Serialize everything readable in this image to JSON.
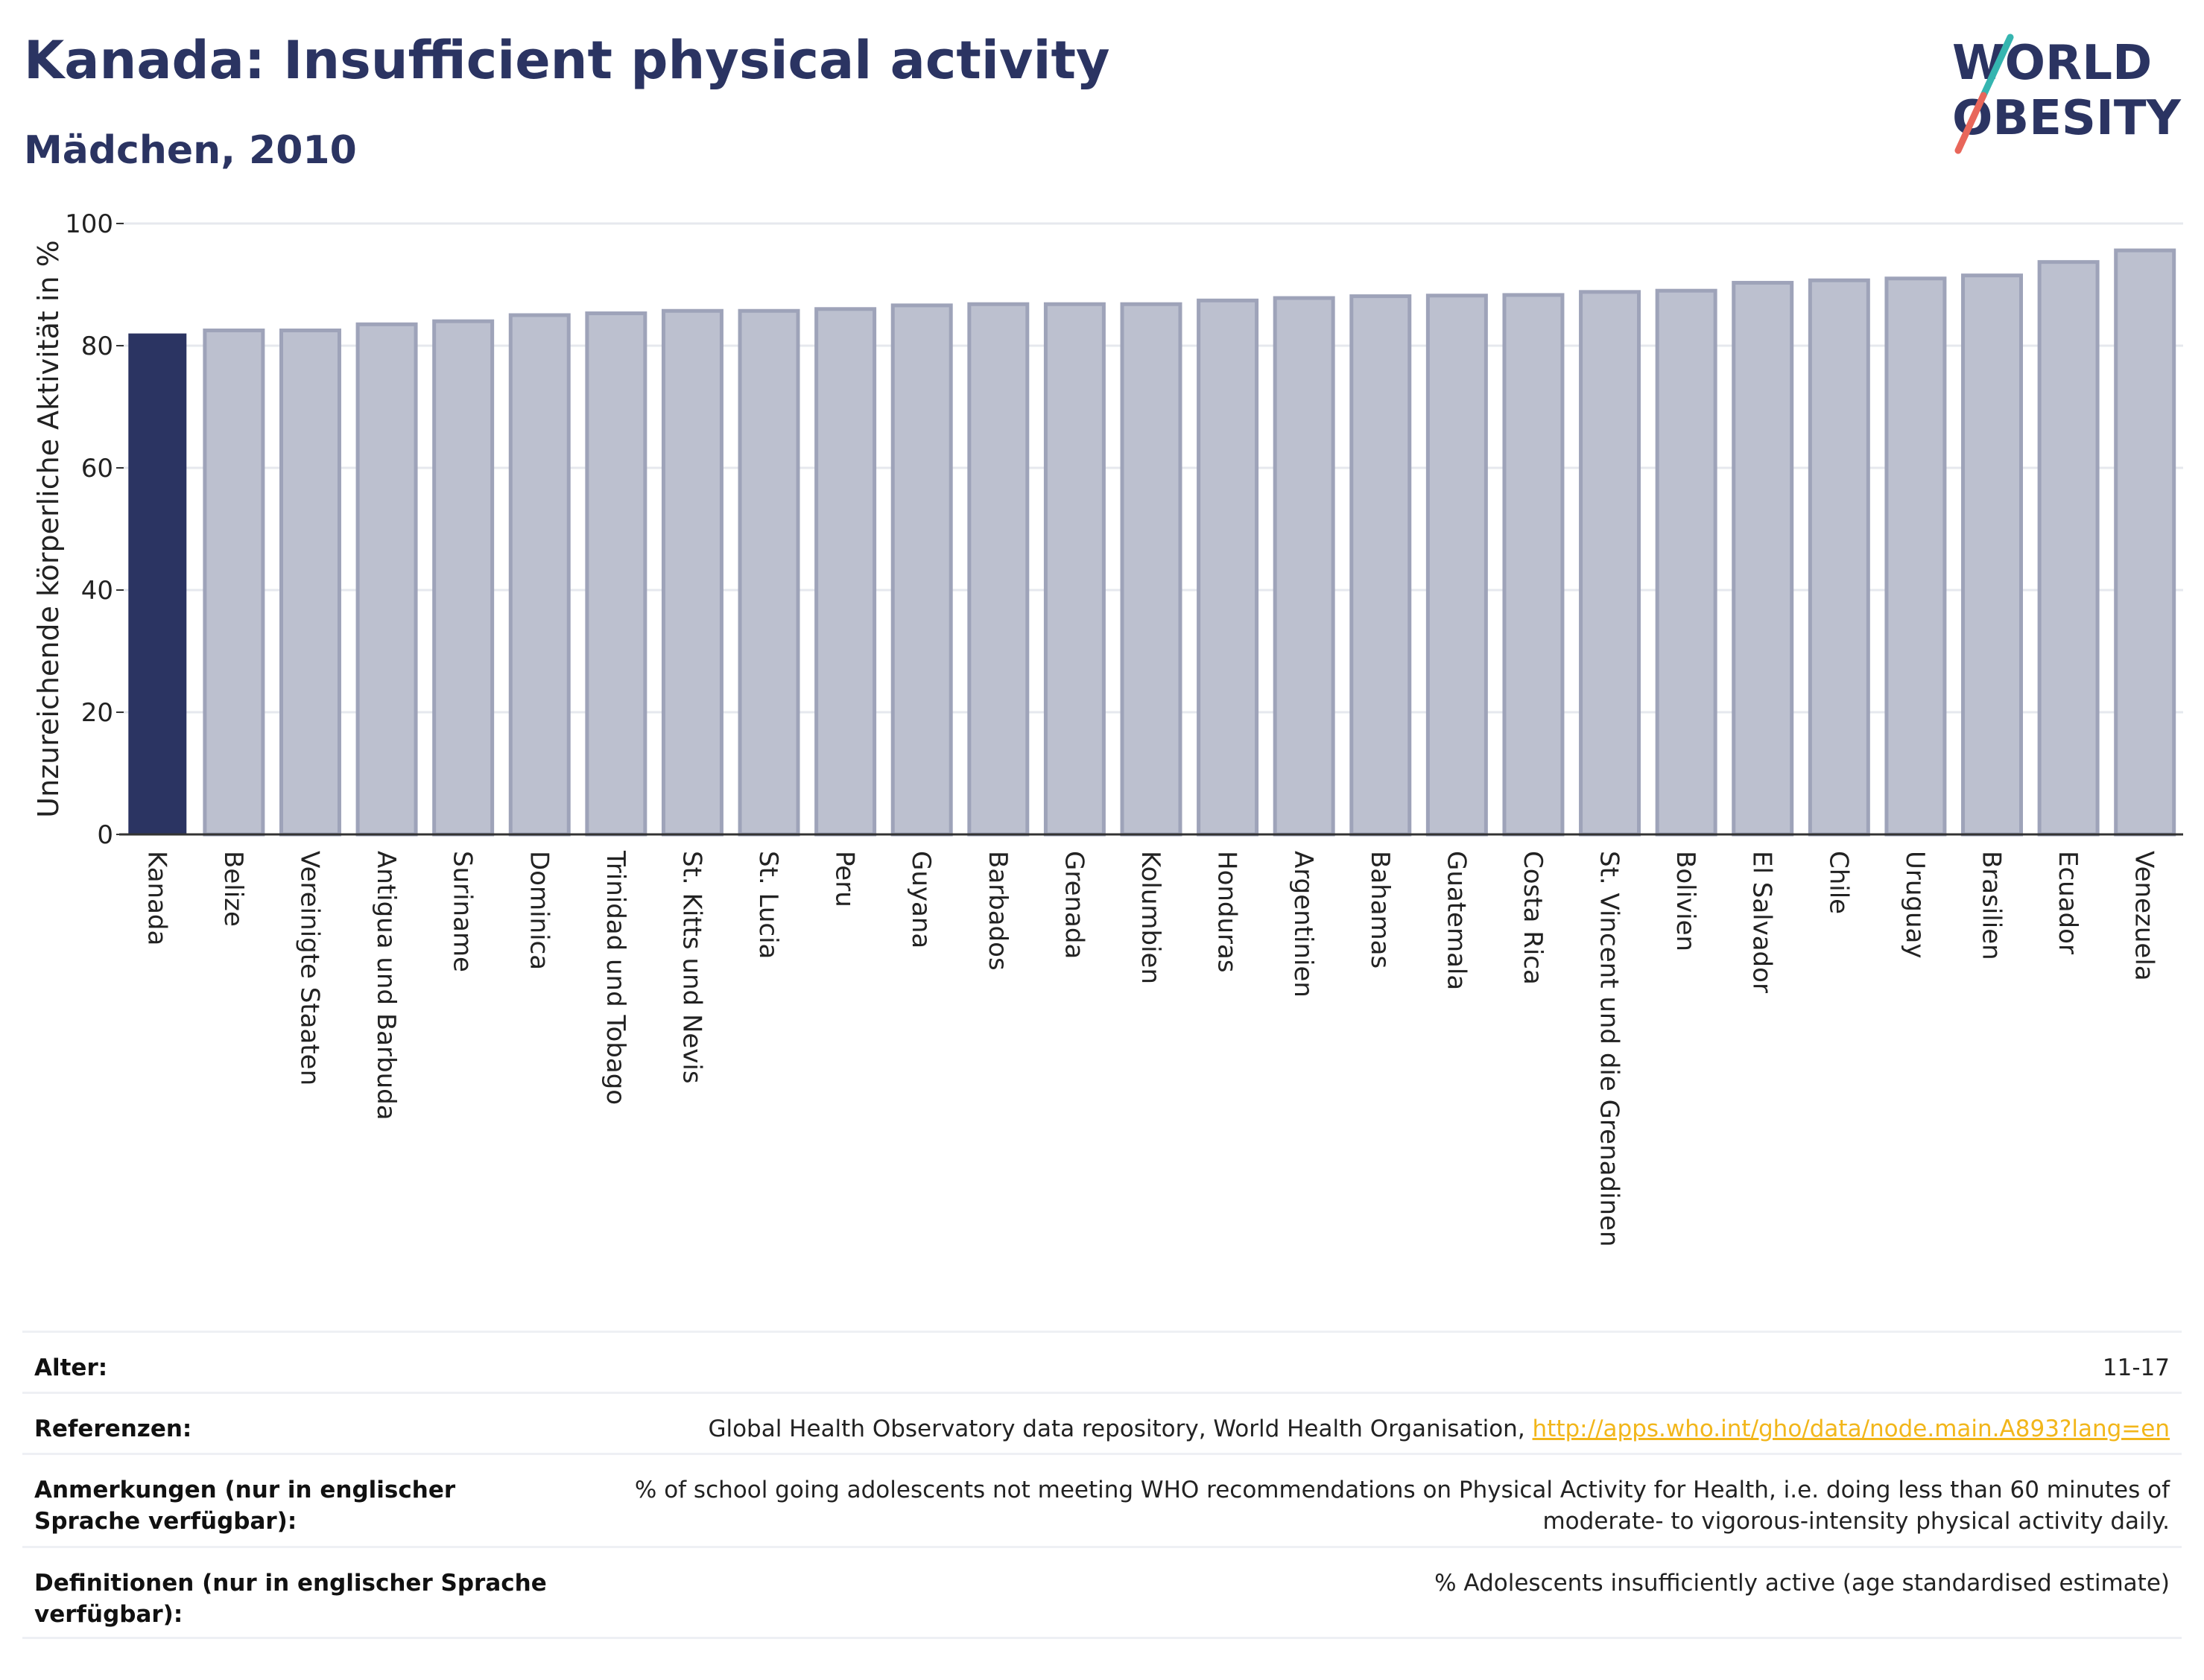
{
  "header": {
    "title": "Kanada: Insufficient physical activity",
    "subtitle": "Mädchen, 2010"
  },
  "logo": {
    "line1": "WORLD",
    "line2": "OBESITY"
  },
  "colors": {
    "highlight": "#2b3462",
    "bar_fill": "#bcc0cf",
    "bar_stroke": "#9ea3b9",
    "logo_teal": "#35b5b0",
    "logo_red": "#e8665a",
    "link": "#f2b61a"
  },
  "chart_data": {
    "type": "bar",
    "ylabel": "Unzureichende körperliche Aktivität in %",
    "ylim": [
      0,
      100
    ],
    "yticks": [
      0,
      20,
      40,
      60,
      80,
      100
    ],
    "grid": true,
    "highlight_category": "Kanada",
    "categories": [
      "Kanada",
      "Belize",
      "Vereinigte Staaten",
      "Antigua und Barbuda",
      "Suriname",
      "Dominica",
      "Trinidad und Tobago",
      "St. Kitts und Nevis",
      "St. Lucia",
      "Peru",
      "Guyana",
      "Barbados",
      "Grenada",
      "Kolumbien",
      "Honduras",
      "Argentinien",
      "Bahamas",
      "Guatemala",
      "Costa Rica",
      "St. Vincent und die Grenadinen",
      "Bolivien",
      "El Salvador",
      "Chile",
      "Uruguay",
      "Brasilien",
      "Ecuador",
      "Venezuela"
    ],
    "values": [
      82.0,
      82.5,
      82.5,
      83.5,
      84.0,
      85.0,
      85.3,
      85.7,
      85.7,
      86.0,
      86.6,
      86.8,
      86.8,
      86.8,
      87.4,
      87.8,
      88.1,
      88.2,
      88.3,
      88.8,
      89.0,
      90.3,
      90.7,
      91.0,
      91.5,
      93.7,
      95.6
    ]
  },
  "info_table": [
    {
      "key": "Alter:",
      "value": "11-17"
    },
    {
      "key": "Referenzen:",
      "value": "Global Health Observatory data repository, World Health Organisation, ",
      "link": "http://apps.who.int/gho/data/node.main.A893?lang=en"
    },
    {
      "key": "Anmerkungen (nur in englischer Sprache verfügbar):",
      "value": "% of school going adolescents not meeting WHO recommendations on Physical Activity for Health, i.e. doing less than 60 minutes of moderate- to vigorous-intensity physical activity daily."
    },
    {
      "key": "Definitionen (nur in englischer Sprache verfügbar):",
      "value": "% Adolescents insufficiently active (age standardised estimate)"
    }
  ]
}
